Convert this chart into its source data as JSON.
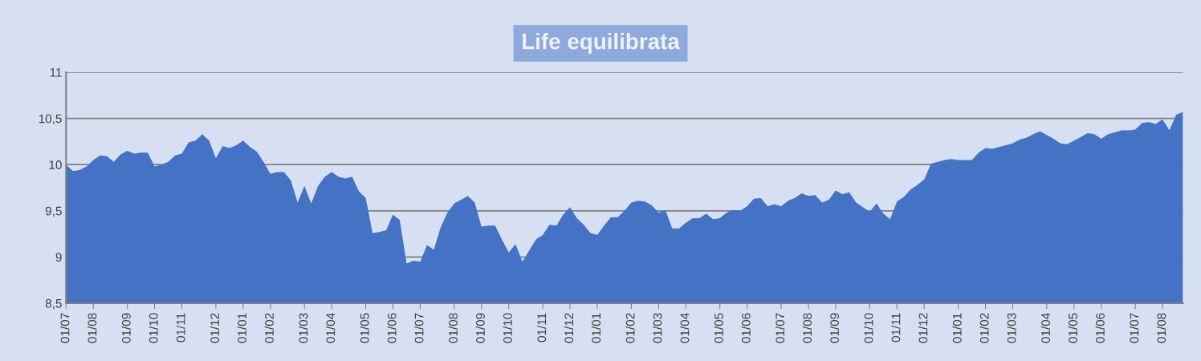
{
  "chart_data": {
    "type": "area",
    "title": "Life equilibrata",
    "categories": [
      "01/07",
      null,
      null,
      null,
      "01/08",
      null,
      null,
      null,
      null,
      "01/09",
      null,
      null,
      null,
      "01/10",
      null,
      null,
      null,
      "01/11",
      null,
      null,
      null,
      null,
      "01/12",
      null,
      null,
      null,
      "01/01",
      null,
      null,
      null,
      "01/02",
      null,
      null,
      null,
      null,
      "01/03",
      null,
      null,
      null,
      "01/04",
      null,
      null,
      null,
      null,
      "01/05",
      null,
      null,
      null,
      "01/06",
      null,
      null,
      null,
      "01/07",
      null,
      null,
      null,
      null,
      "01/08",
      null,
      null,
      null,
      "01/09",
      null,
      null,
      null,
      "01/10",
      null,
      null,
      null,
      null,
      "01/11",
      null,
      null,
      null,
      "01/12",
      null,
      null,
      null,
      "01/01",
      null,
      null,
      null,
      null,
      "01/02",
      null,
      null,
      null,
      "01/03",
      null,
      null,
      null,
      "01/04",
      null,
      null,
      null,
      null,
      "01/05",
      null,
      null,
      null,
      "01/06",
      null,
      null,
      null,
      null,
      "01/07",
      null,
      null,
      null,
      "01/08",
      null,
      null,
      null,
      "01/09",
      null,
      null,
      null,
      null,
      "01/10",
      null,
      null,
      null,
      "01/11",
      null,
      null,
      null,
      "01/12",
      null,
      null,
      null,
      null,
      "01/01",
      null,
      null,
      null,
      "01/02",
      null,
      null,
      null,
      "01/03",
      null,
      null,
      null,
      null,
      "01/04",
      null,
      null,
      null,
      "01/05",
      null,
      null,
      null,
      "01/06",
      null,
      null,
      null,
      null,
      "01/07",
      null,
      null,
      null,
      "01/08",
      null,
      null,
      null
    ],
    "series": [
      {
        "color": "#4472c4",
        "values": [
          10.0,
          9.93,
          9.94,
          9.98,
          10.05,
          10.1,
          10.09,
          10.03,
          10.11,
          10.15,
          10.12,
          10.13,
          10.13,
          9.98,
          10.0,
          10.03,
          10.1,
          10.12,
          10.24,
          10.26,
          10.33,
          10.26,
          10.07,
          10.2,
          10.18,
          10.21,
          10.26,
          10.19,
          10.14,
          10.03,
          9.9,
          9.92,
          9.92,
          9.83,
          9.59,
          9.77,
          9.58,
          9.77,
          9.87,
          9.92,
          9.87,
          9.85,
          9.87,
          9.71,
          9.64,
          9.26,
          9.27,
          9.29,
          9.46,
          9.4,
          8.93,
          8.96,
          8.95,
          9.13,
          9.08,
          9.32,
          9.48,
          9.58,
          9.62,
          9.66,
          9.59,
          9.33,
          9.34,
          9.34,
          9.19,
          9.05,
          9.14,
          8.95,
          9.07,
          9.19,
          9.24,
          9.35,
          9.34,
          9.46,
          9.54,
          9.42,
          9.35,
          9.26,
          9.24,
          9.34,
          9.43,
          9.43,
          9.5,
          9.59,
          9.61,
          9.6,
          9.56,
          9.48,
          9.51,
          9.31,
          9.31,
          9.37,
          9.42,
          9.42,
          9.47,
          9.41,
          9.42,
          9.48,
          9.51,
          9.5,
          9.55,
          9.63,
          9.64,
          9.55,
          9.57,
          9.55,
          9.61,
          9.64,
          9.69,
          9.66,
          9.67,
          9.59,
          9.62,
          9.72,
          9.68,
          9.7,
          9.59,
          9.54,
          9.49,
          9.58,
          9.47,
          9.41,
          9.6,
          9.65,
          9.73,
          9.78,
          9.84,
          10.01,
          10.03,
          10.05,
          10.06,
          10.05,
          10.05,
          10.05,
          10.13,
          10.18,
          10.17,
          10.19,
          10.21,
          10.23,
          10.27,
          10.29,
          10.33,
          10.36,
          10.32,
          10.28,
          10.23,
          10.22,
          10.26,
          10.3,
          10.34,
          10.33,
          10.28,
          10.33,
          10.35,
          10.37,
          10.37,
          10.38,
          10.45,
          10.46,
          10.44,
          10.49,
          10.37,
          10.54,
          10.57
        ]
      }
    ],
    "ylim": [
      8.5,
      11
    ],
    "yticks": [
      {
        "value": 8.5,
        "label": "8,5"
      },
      9,
      {
        "value": 9.5,
        "label": "9,5"
      },
      10,
      {
        "value": 10.5,
        "label": "10,5"
      },
      11
    ],
    "grid": "y"
  }
}
